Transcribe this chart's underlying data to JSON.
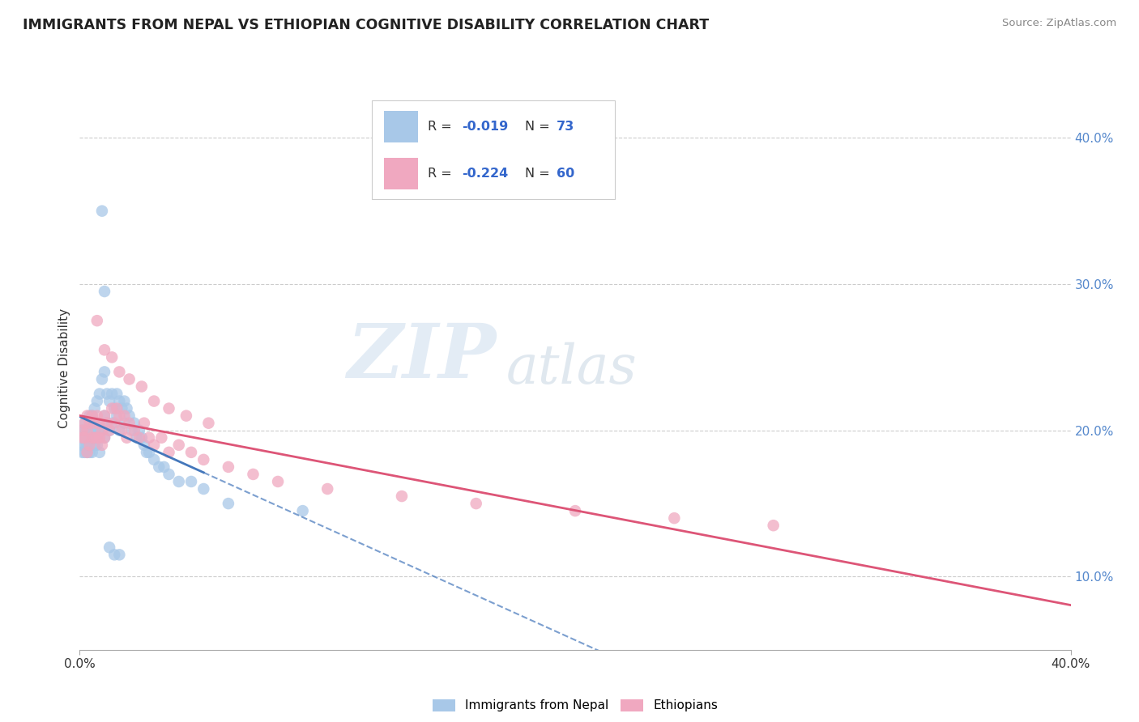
{
  "title": "IMMIGRANTS FROM NEPAL VS ETHIOPIAN COGNITIVE DISABILITY CORRELATION CHART",
  "source": "Source: ZipAtlas.com",
  "ylabel": "Cognitive Disability",
  "right_yticks": [
    "10.0%",
    "20.0%",
    "30.0%",
    "40.0%"
  ],
  "right_ytick_vals": [
    0.1,
    0.2,
    0.3,
    0.4
  ],
  "xmin": 0.0,
  "xmax": 0.4,
  "ymin": 0.05,
  "ymax": 0.435,
  "legend_label1": "Immigrants from Nepal",
  "legend_label2": "Ethiopians",
  "watermark_zip": "ZIP",
  "watermark_atlas": "atlas",
  "nepal_color": "#a8c8e8",
  "ethiopia_color": "#f0a8c0",
  "nepal_line_color": "#4477bb",
  "ethiopia_line_color": "#dd5577",
  "nepal_r": -0.019,
  "nepal_n": 73,
  "ethiopia_r": -0.224,
  "ethiopia_n": 60,
  "nepal_scatter_x": [
    0.001,
    0.001,
    0.001,
    0.001,
    0.002,
    0.002,
    0.002,
    0.002,
    0.002,
    0.003,
    0.003,
    0.003,
    0.003,
    0.004,
    0.004,
    0.004,
    0.004,
    0.005,
    0.005,
    0.005,
    0.005,
    0.006,
    0.006,
    0.006,
    0.007,
    0.007,
    0.007,
    0.008,
    0.008,
    0.008,
    0.009,
    0.009,
    0.01,
    0.01,
    0.01,
    0.011,
    0.011,
    0.012,
    0.012,
    0.013,
    0.013,
    0.014,
    0.015,
    0.015,
    0.016,
    0.016,
    0.017,
    0.018,
    0.018,
    0.019,
    0.02,
    0.021,
    0.022,
    0.023,
    0.024,
    0.025,
    0.026,
    0.027,
    0.028,
    0.03,
    0.032,
    0.034,
    0.036,
    0.04,
    0.045,
    0.05,
    0.06,
    0.09,
    0.009,
    0.01,
    0.012,
    0.014,
    0.016
  ],
  "nepal_scatter_y": [
    0.19,
    0.195,
    0.2,
    0.185,
    0.195,
    0.19,
    0.2,
    0.185,
    0.205,
    0.195,
    0.2,
    0.19,
    0.185,
    0.21,
    0.195,
    0.2,
    0.185,
    0.21,
    0.195,
    0.2,
    0.185,
    0.215,
    0.2,
    0.19,
    0.22,
    0.205,
    0.19,
    0.225,
    0.2,
    0.185,
    0.235,
    0.2,
    0.24,
    0.21,
    0.195,
    0.225,
    0.205,
    0.22,
    0.2,
    0.225,
    0.205,
    0.215,
    0.225,
    0.21,
    0.22,
    0.2,
    0.215,
    0.22,
    0.205,
    0.215,
    0.21,
    0.2,
    0.205,
    0.195,
    0.2,
    0.195,
    0.19,
    0.185,
    0.185,
    0.18,
    0.175,
    0.175,
    0.17,
    0.165,
    0.165,
    0.16,
    0.15,
    0.145,
    0.35,
    0.295,
    0.12,
    0.115,
    0.115
  ],
  "ethiopia_scatter_x": [
    0.001,
    0.001,
    0.002,
    0.002,
    0.003,
    0.003,
    0.003,
    0.004,
    0.004,
    0.005,
    0.005,
    0.006,
    0.006,
    0.007,
    0.007,
    0.008,
    0.008,
    0.009,
    0.009,
    0.01,
    0.01,
    0.011,
    0.012,
    0.013,
    0.014,
    0.015,
    0.016,
    0.017,
    0.018,
    0.019,
    0.02,
    0.022,
    0.024,
    0.026,
    0.028,
    0.03,
    0.033,
    0.036,
    0.04,
    0.045,
    0.05,
    0.06,
    0.07,
    0.08,
    0.1,
    0.13,
    0.16,
    0.2,
    0.24,
    0.28,
    0.007,
    0.01,
    0.013,
    0.016,
    0.02,
    0.025,
    0.03,
    0.036,
    0.043,
    0.052
  ],
  "ethiopia_scatter_y": [
    0.2,
    0.195,
    0.205,
    0.195,
    0.21,
    0.2,
    0.185,
    0.205,
    0.19,
    0.21,
    0.195,
    0.205,
    0.195,
    0.21,
    0.195,
    0.205,
    0.195,
    0.2,
    0.19,
    0.21,
    0.195,
    0.205,
    0.2,
    0.215,
    0.205,
    0.215,
    0.21,
    0.2,
    0.21,
    0.195,
    0.205,
    0.2,
    0.195,
    0.205,
    0.195,
    0.19,
    0.195,
    0.185,
    0.19,
    0.185,
    0.18,
    0.175,
    0.17,
    0.165,
    0.16,
    0.155,
    0.15,
    0.145,
    0.14,
    0.135,
    0.275,
    0.255,
    0.25,
    0.24,
    0.235,
    0.23,
    0.22,
    0.215,
    0.21,
    0.205
  ]
}
